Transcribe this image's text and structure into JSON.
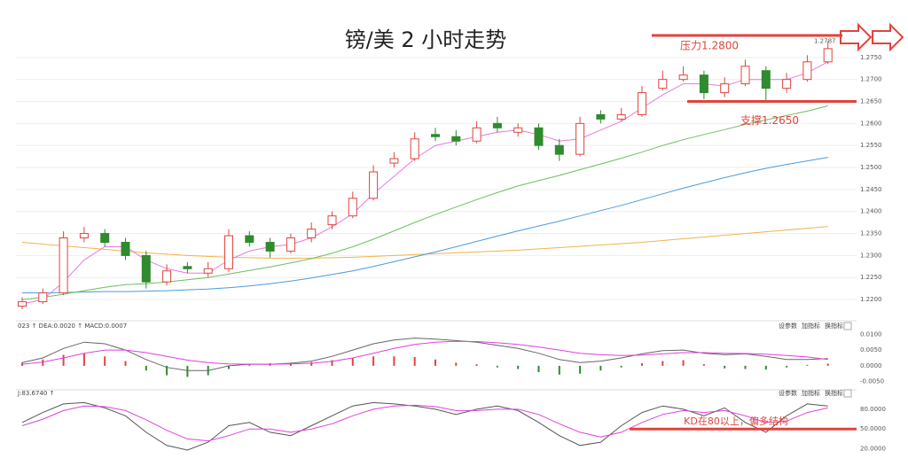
{
  "chart_data": [
    {
      "type": "candlestick",
      "title": "镑/美 2 小时走势",
      "open": [
        1.2185,
        1.2195,
        1.2215,
        1.234,
        1.235,
        1.233,
        1.23,
        1.224,
        1.2275,
        1.226,
        1.227,
        1.2345,
        1.233,
        1.231,
        1.234,
        1.237,
        1.239,
        1.243,
        1.251,
        1.252,
        1.2575,
        1.257,
        1.256,
        1.26,
        1.258,
        1.259,
        1.255,
        1.253,
        1.262,
        1.261,
        1.262,
        1.268,
        1.27,
        1.271,
        1.267,
        1.269,
        1.272,
        1.268,
        1.27,
        1.274
      ],
      "high": [
        1.2205,
        1.2225,
        1.2355,
        1.2365,
        1.236,
        1.234,
        1.231,
        1.228,
        1.2285,
        1.2285,
        1.236,
        1.2355,
        1.234,
        1.235,
        1.2375,
        1.24,
        1.2445,
        1.2505,
        1.2535,
        1.258,
        1.259,
        1.2585,
        1.2605,
        1.2615,
        1.26,
        1.26,
        1.2565,
        1.2615,
        1.263,
        1.2635,
        1.2685,
        1.272,
        1.273,
        1.272,
        1.2705,
        1.2745,
        1.273,
        1.2715,
        1.2755,
        1.2787
      ],
      "low": [
        1.2178,
        1.219,
        1.221,
        1.233,
        1.232,
        1.229,
        1.2225,
        1.2232,
        1.226,
        1.225,
        1.2262,
        1.232,
        1.2295,
        1.2305,
        1.233,
        1.236,
        1.2385,
        1.2425,
        1.25,
        1.2515,
        1.256,
        1.255,
        1.2555,
        1.258,
        1.257,
        1.254,
        1.2515,
        1.2525,
        1.26,
        1.2605,
        1.2615,
        1.2675,
        1.2695,
        1.2655,
        1.266,
        1.2685,
        1.265,
        1.267,
        1.2695,
        1.2735
      ],
      "close": [
        1.2195,
        1.2215,
        1.234,
        1.235,
        1.233,
        1.23,
        1.224,
        1.2265,
        1.227,
        1.227,
        1.2345,
        1.233,
        1.231,
        1.234,
        1.236,
        1.239,
        1.243,
        1.249,
        1.252,
        1.2565,
        1.257,
        1.256,
        1.259,
        1.259,
        1.259,
        1.255,
        1.253,
        1.26,
        1.261,
        1.262,
        1.267,
        1.27,
        1.271,
        1.267,
        1.269,
        1.273,
        1.268,
        1.27,
        1.274,
        1.277
      ],
      "up_color": "#e0443c",
      "down_color": "#2e8b2e",
      "lines": [
        {
          "color": "#e879e0",
          "values": [
            1.219,
            1.22,
            1.224,
            1.229,
            1.232,
            1.232,
            1.229,
            1.227,
            1.226,
            1.226,
            1.229,
            1.231,
            1.232,
            1.2325,
            1.234,
            1.2365,
            1.2395,
            1.244,
            1.248,
            1.252,
            1.255,
            1.256,
            1.257,
            1.258,
            1.2585,
            1.2575,
            1.256,
            1.2565,
            1.2585,
            1.2605,
            1.2635,
            1.2665,
            1.269,
            1.269,
            1.2685,
            1.27,
            1.27,
            1.27,
            1.2715,
            1.274
          ]
        },
        {
          "color": "#6cbf5e",
          "values": [
            1.22,
            1.2205,
            1.2212,
            1.222,
            1.2228,
            1.2234,
            1.2236,
            1.224,
            1.2245,
            1.225,
            1.2258,
            1.2266,
            1.2274,
            1.2283,
            1.2293,
            1.2305,
            1.232,
            1.2337,
            1.2356,
            1.2375,
            1.2393,
            1.241,
            1.2427,
            1.2443,
            1.2458,
            1.247,
            1.2482,
            1.2495,
            1.2508,
            1.2521,
            1.2535,
            1.255,
            1.2563,
            1.2575,
            1.2586,
            1.2598,
            1.2608,
            1.2618,
            1.2628,
            1.264
          ]
        },
        {
          "color": "#4a9be0",
          "values": [
            1.2215,
            1.2215,
            1.2216,
            1.2217,
            1.2218,
            1.2218,
            1.2219,
            1.222,
            1.2222,
            1.2224,
            1.2227,
            1.2231,
            1.2236,
            1.2242,
            1.2249,
            1.2257,
            1.2265,
            1.2275,
            1.2286,
            1.2297,
            1.2308,
            1.232,
            1.2332,
            1.2344,
            1.2356,
            1.2367,
            1.2378,
            1.239,
            1.2402,
            1.2414,
            1.2427,
            1.244,
            1.2453,
            1.2465,
            1.2477,
            1.2488,
            1.2498,
            1.2507,
            1.2515,
            1.2523
          ]
        },
        {
          "color": "#f3b24a",
          "values": [
            1.233,
            1.2326,
            1.2322,
            1.2318,
            1.2314,
            1.231,
            1.2306,
            1.2303,
            1.23,
            1.2298,
            1.2296,
            1.2295,
            1.2294,
            1.2294,
            1.2294,
            1.2295,
            1.2296,
            1.2298,
            1.23,
            1.2302,
            1.2304,
            1.2306,
            1.2308,
            1.231,
            1.2312,
            1.2315,
            1.2318,
            1.2321,
            1.2324,
            1.2327,
            1.233,
            1.2334,
            1.2338,
            1.2342,
            1.2346,
            1.235,
            1.2354,
            1.2358,
            1.2362,
            1.2366
          ]
        }
      ],
      "ylim": [
        1.2176,
        1.28
      ],
      "yticks": [
        {
          "value": 1.275,
          "label": "1.2750"
        },
        {
          "value": 1.27,
          "label": "1.2700"
        },
        {
          "value": 1.265,
          "label": "1.2650"
        },
        {
          "value": 1.26,
          "label": "1.2600"
        },
        {
          "value": 1.255,
          "label": "1.2550"
        },
        {
          "value": 1.25,
          "label": "1.2500"
        },
        {
          "value": 1.245,
          "label": "1.2450"
        },
        {
          "value": 1.24,
          "label": "1.2400"
        },
        {
          "value": 1.235,
          "label": "1.2350"
        },
        {
          "value": 1.23,
          "label": "1.2300"
        },
        {
          "value": 1.225,
          "label": "1.2250"
        },
        {
          "value": 1.22,
          "label": "1.2200"
        }
      ],
      "grid": true,
      "price_label": {
        "value": 1.2787,
        "label": "1.2787"
      },
      "annotations": [
        {
          "text": "压力1.2800",
          "value": 1.28,
          "color": "#e0443c"
        },
        {
          "text": "支撑1.2650",
          "value": 1.265,
          "color": "#e0443c"
        }
      ]
    },
    {
      "type": "macd",
      "header": "023 ↑ DEA:0.0020 ↑ MACD:0.0007",
      "buttons": [
        "设参数",
        "加指标",
        "换指标"
      ],
      "up_color": "#e0443c",
      "down_color": "#2e8b2e",
      "values": [
        0.001,
        0.002,
        0.0035,
        0.004,
        0.003,
        0.0015,
        -0.0015,
        -0.003,
        -0.0035,
        -0.003,
        -0.001,
        0.0005,
        0.0008,
        0.001,
        0.0012,
        0.0018,
        0.0025,
        0.003,
        0.003,
        0.0028,
        0.002,
        0.001,
        0.0005,
        -0.0005,
        -0.001,
        -0.002,
        -0.0028,
        -0.0025,
        -0.0015,
        -0.0005,
        0.0008,
        0.0015,
        0.0018,
        0.0005,
        -0.0008,
        -0.001,
        -0.0012,
        -0.0005,
        0.0003,
        0.0007
      ],
      "series": [
        {
          "color": "#666666",
          "values": [
            0.001,
            0.0025,
            0.0055,
            0.0075,
            0.007,
            0.005,
            0.002,
            -0.0005,
            -0.0015,
            -0.0015,
            0.0,
            0.0005,
            0.0005,
            0.0008,
            0.0015,
            0.003,
            0.005,
            0.007,
            0.0082,
            0.0088,
            0.0085,
            0.008,
            0.0075,
            0.0065,
            0.0055,
            0.004,
            0.002,
            0.001,
            0.0015,
            0.0025,
            0.0038,
            0.0048,
            0.005,
            0.004,
            0.0035,
            0.0038,
            0.003,
            0.002,
            0.002,
            0.0023
          ]
        },
        {
          "color": "#e040e0",
          "values": [
            0.0005,
            0.0012,
            0.0025,
            0.004,
            0.005,
            0.005,
            0.0042,
            0.003,
            0.0018,
            0.001,
            0.0006,
            0.0005,
            0.0005,
            0.0006,
            0.0008,
            0.0014,
            0.0025,
            0.004,
            0.0055,
            0.0068,
            0.0075,
            0.0078,
            0.0077,
            0.0073,
            0.0068,
            0.006,
            0.005,
            0.004,
            0.0035,
            0.0033,
            0.0034,
            0.0038,
            0.0042,
            0.0042,
            0.004,
            0.0039,
            0.0037,
            0.0033,
            0.0028,
            0.002
          ]
        }
      ],
      "ylim": [
        -0.0065,
        0.0115
      ],
      "yticks": [
        {
          "value": 0.01,
          "label": "0.0100"
        },
        {
          "value": 0.005,
          "label": "0.0050"
        },
        {
          "value": 0,
          "label": "0.0000"
        },
        {
          "value": -0.005,
          "label": "-0.0050"
        }
      ]
    },
    {
      "type": "line",
      "header": "J:83.6740 ↑",
      "buttons": [
        "设参数",
        "加指标",
        "换指标"
      ],
      "series": [
        {
          "color": "#555555",
          "values": [
            60,
            75,
            88,
            90,
            82,
            70,
            45,
            25,
            18,
            30,
            55,
            60,
            45,
            40,
            55,
            70,
            85,
            90,
            88,
            85,
            80,
            72,
            80,
            85,
            78,
            60,
            40,
            25,
            30,
            55,
            75,
            85,
            80,
            70,
            82,
            60,
            45,
            70,
            88,
            85
          ]
        },
        {
          "color": "#e040e0",
          "values": [
            55,
            65,
            78,
            85,
            84,
            78,
            64,
            48,
            35,
            32,
            40,
            50,
            50,
            45,
            50,
            58,
            70,
            80,
            85,
            86,
            84,
            78,
            78,
            80,
            80,
            72,
            58,
            45,
            38,
            45,
            60,
            72,
            78,
            75,
            78,
            70,
            60,
            62,
            75,
            82
          ]
        }
      ],
      "ylim": [
        10,
        100
      ],
      "yticks": [
        {
          "value": 80,
          "label": "80.0000"
        },
        {
          "value": 50,
          "label": "50.0000"
        },
        {
          "value": 20,
          "label": "20.0000"
        }
      ],
      "annotations": [
        {
          "text": "KD在80以上，偏多结构",
          "value": 50,
          "color": "#e0443c"
        }
      ]
    }
  ]
}
